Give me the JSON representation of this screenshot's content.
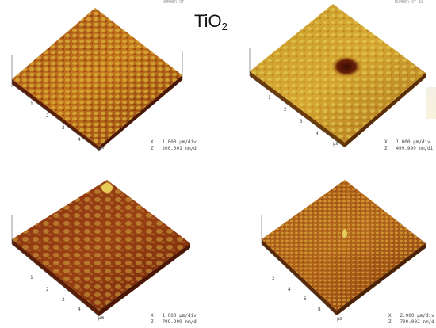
{
  "title": {
    "main": "TiO",
    "sub": "2"
  },
  "colors": {
    "dark": "#7a2a0a",
    "mid": "#c0741a",
    "light": "#e8d05a"
  },
  "panels": [
    {
      "scale_x": "X   1.000 µm/div",
      "scale_z": "Z   200.001 nm/d",
      "unit": "µm",
      "ticks": [
        "1",
        "2",
        "3",
        "4"
      ],
      "header": "NUMBER OT"
    },
    {
      "scale_x": "X   1.000 µm/div",
      "scale_z": "Z   499.999 nm/di",
      "unit": "µm",
      "ticks": [
        "1",
        "2",
        "3",
        "4"
      ],
      "header": "NUMBER OT 18"
    },
    {
      "scale_x": "X   1.000 µm/div",
      "scale_z": "Z   799.999 nm/d",
      "unit": "µm",
      "ticks": [
        "1",
        "2",
        "3",
        "4"
      ],
      "header": ""
    },
    {
      "scale_x": "X   2.000 µm/div",
      "scale_z": "Z   700.002 nm/d",
      "unit": "µm",
      "ticks": [
        "2",
        "4",
        "6",
        "8"
      ],
      "header": ""
    }
  ]
}
